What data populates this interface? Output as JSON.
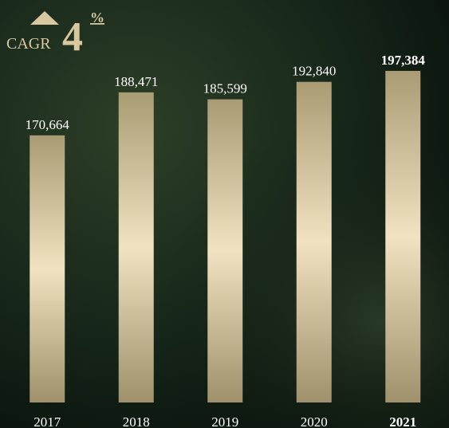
{
  "chart_data": {
    "type": "bar",
    "annotations": {
      "cagr_label": "CAGR",
      "cagr_value": "4",
      "cagr_unit": "%"
    },
    "categories": [
      "2017",
      "2018",
      "2019",
      "2020",
      "2021"
    ],
    "values": [
      170664,
      188471,
      185599,
      192840,
      197384
    ],
    "value_labels": [
      "170,664",
      "188,471",
      "185,599",
      "192,840",
      "197,384"
    ],
    "ylim": [
      60000,
      200000
    ]
  }
}
